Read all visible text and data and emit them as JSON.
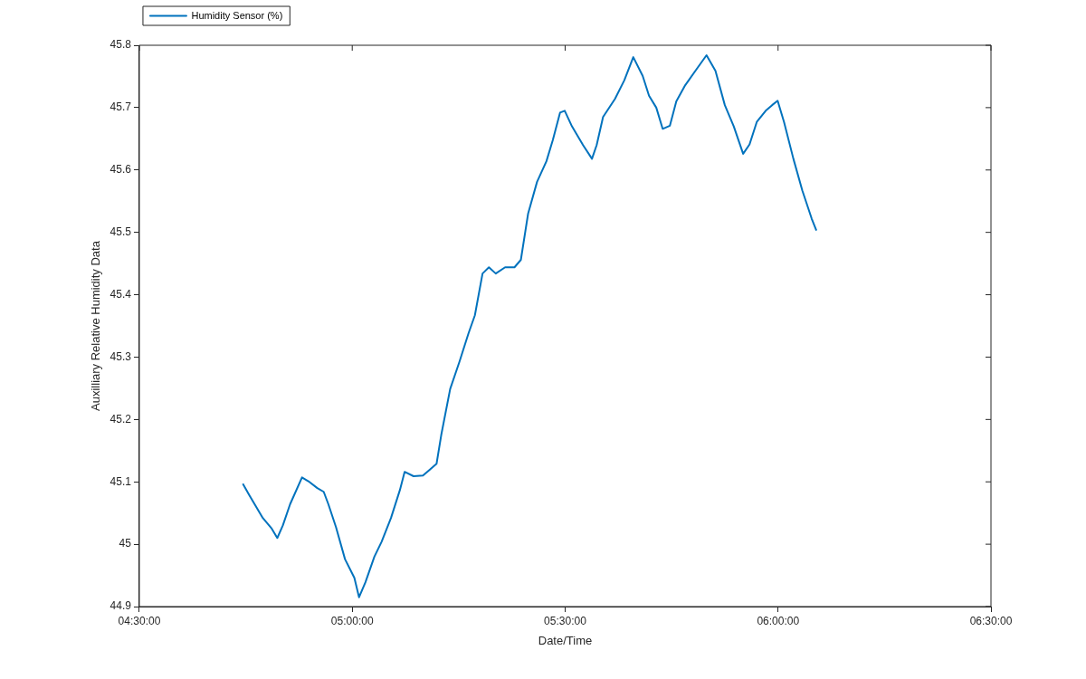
{
  "chart_data": {
    "type": "line",
    "xlabel": "Date/Time",
    "ylabel": "Auxilliary Relative Humidity Data",
    "xlim": [
      4.5,
      6.5
    ],
    "xticks": [
      {
        "value": 4.5,
        "label": "04:30:00"
      },
      {
        "value": 5,
        "label": "05:00:00"
      },
      {
        "value": 5.5,
        "label": "05:30:00"
      },
      {
        "value": 6,
        "label": "06:00:00"
      },
      {
        "value": 6.5,
        "label": "06:30:00"
      }
    ],
    "ylim": [
      44.9,
      45.8
    ],
    "yticks": [
      44.9,
      45,
      45.1,
      45.2,
      45.3,
      45.4,
      45.5,
      45.6,
      45.7,
      45.8
    ],
    "grid": false,
    "legend": "top left",
    "marker": "none",
    "line_style": "solid",
    "series": [
      {
        "name": "Humidity Sensor (%)",
        "color": "#0072bd",
        "x": [
          4.743,
          4.758,
          4.79,
          4.811,
          4.824,
          4.837,
          4.854,
          4.882,
          4.897,
          4.918,
          4.933,
          4.944,
          4.962,
          4.983,
          5.005,
          5.016,
          5.031,
          5.052,
          5.069,
          5.091,
          5.112,
          5.123,
          5.144,
          5.166,
          5.181,
          5.198,
          5.209,
          5.23,
          5.252,
          5.273,
          5.288,
          5.306,
          5.321,
          5.337,
          5.359,
          5.381,
          5.396,
          5.413,
          5.434,
          5.456,
          5.471,
          5.488,
          5.499,
          5.516,
          5.542,
          5.563,
          5.574,
          5.589,
          5.617,
          5.639,
          5.66,
          5.682,
          5.697,
          5.714,
          5.729,
          5.746,
          5.761,
          5.782,
          5.81,
          5.832,
          5.853,
          5.875,
          5.896,
          5.918,
          5.933,
          5.95,
          5.971,
          5.986,
          5.999,
          6.014,
          6.036,
          6.057,
          6.079,
          6.09
        ],
        "values": [
          45.097,
          45.079,
          45.042,
          45.025,
          45.01,
          45.03,
          45.064,
          45.107,
          45.101,
          45.09,
          45.084,
          45.064,
          45.027,
          44.976,
          44.946,
          44.915,
          44.939,
          44.98,
          45.004,
          45.042,
          45.087,
          45.116,
          45.109,
          45.11,
          45.119,
          45.129,
          45.175,
          45.249,
          45.293,
          45.338,
          45.367,
          45.434,
          45.444,
          45.434,
          45.444,
          45.444,
          45.456,
          45.53,
          45.581,
          45.614,
          45.648,
          45.692,
          45.695,
          45.67,
          45.64,
          45.618,
          45.64,
          45.685,
          45.714,
          45.744,
          45.781,
          45.751,
          45.719,
          45.7,
          45.666,
          45.671,
          45.71,
          45.736,
          45.763,
          45.784,
          45.759,
          45.704,
          45.67,
          45.626,
          45.641,
          45.677,
          45.695,
          45.704,
          45.711,
          45.677,
          45.618,
          45.567,
          45.522,
          45.503
        ]
      }
    ]
  }
}
